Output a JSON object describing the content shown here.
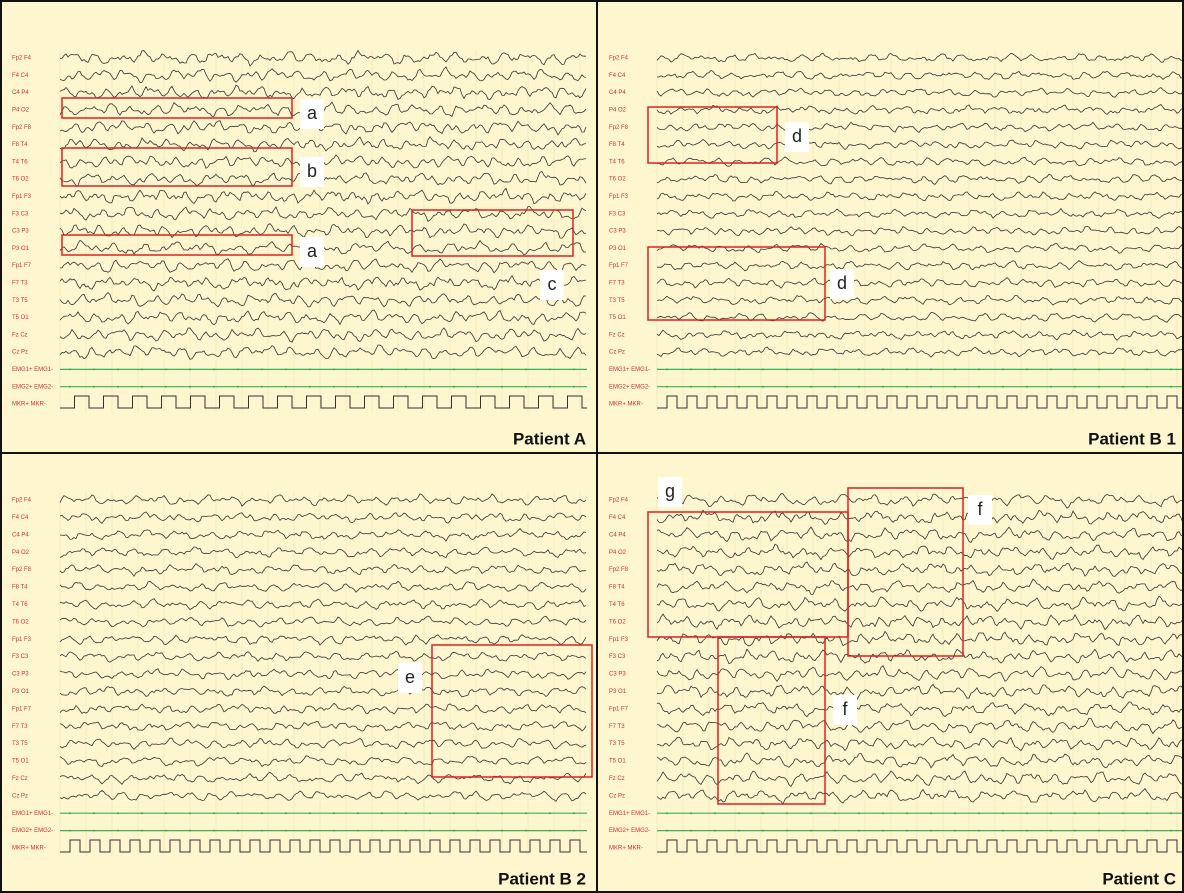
{
  "channels": [
    "Fp2 F4",
    "F4 C4",
    "C4 P4",
    "P4 O2",
    "Fp2 F8",
    "F8 T4",
    "T4 T6",
    "T6 O2",
    "Fp1 F3",
    "F3 C3",
    "C3 P3",
    "P3 O1",
    "Fp1 F7",
    "F7 T3",
    "T3 T5",
    "T5 O1",
    "Fz Cz",
    "Cz Pz",
    "EMG1+ EMG1-",
    "EMG2+ EMG2-",
    "MKR+ MKR-"
  ],
  "panels": [
    {
      "title": "Patient A",
      "annotations": [
        {
          "label": "a"
        },
        {
          "label": "b"
        },
        {
          "label": "a"
        },
        {
          "label": "c"
        }
      ]
    },
    {
      "title": "Patient B 1",
      "annotations": [
        {
          "label": "d"
        },
        {
          "label": "d"
        }
      ]
    },
    {
      "title": "Patient B 2",
      "annotations": [
        {
          "label": "e"
        }
      ]
    },
    {
      "title": "Patient C",
      "annotations": [
        {
          "label": "g"
        },
        {
          "label": "f"
        },
        {
          "label": "f"
        }
      ]
    }
  ]
}
